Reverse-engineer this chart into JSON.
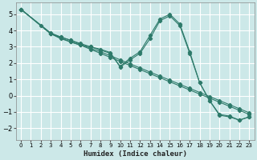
{
  "xlabel": "Humidex (Indice chaleur)",
  "ylabel": "",
  "bg_color": "#cce8e8",
  "grid_color": "#ffffff",
  "line_color": "#2d7a6a",
  "xlim": [
    -0.5,
    23.5
  ],
  "ylim": [
    -2.7,
    5.7
  ],
  "xticks": [
    0,
    1,
    2,
    3,
    4,
    5,
    6,
    7,
    8,
    9,
    10,
    11,
    12,
    13,
    14,
    15,
    16,
    17,
    18,
    19,
    20,
    21,
    22,
    23
  ],
  "yticks": [
    -2,
    -1,
    0,
    1,
    2,
    3,
    4,
    5
  ],
  "series": [
    {
      "x": [
        0,
        3,
        4,
        5,
        6,
        7,
        8,
        9,
        10,
        11,
        12,
        13,
        14,
        15,
        16,
        17,
        18,
        19,
        20,
        21,
        22,
        23
      ],
      "y": [
        5.3,
        3.8,
        3.55,
        3.3,
        3.1,
        2.85,
        2.6,
        2.35,
        2.1,
        1.85,
        1.6,
        1.35,
        1.1,
        0.85,
        0.6,
        0.35,
        0.1,
        -0.15,
        -0.4,
        -0.65,
        -0.9,
        -1.15
      ]
    },
    {
      "x": [
        0,
        3,
        4,
        5,
        6,
        7,
        8,
        9,
        10,
        11,
        12,
        13,
        14,
        15,
        16,
        17,
        18,
        19,
        20,
        21,
        22,
        23
      ],
      "y": [
        5.3,
        3.85,
        3.6,
        3.4,
        3.15,
        2.9,
        2.7,
        2.45,
        2.2,
        1.95,
        1.7,
        1.45,
        1.2,
        0.95,
        0.7,
        0.45,
        0.2,
        -0.05,
        -0.3,
        -0.55,
        -0.8,
        -1.05
      ]
    },
    {
      "x": [
        0,
        2,
        3,
        4,
        5,
        6,
        7,
        8,
        9,
        10,
        11,
        12,
        13,
        14,
        15,
        16,
        17,
        18,
        19,
        20,
        21,
        22,
        23
      ],
      "y": [
        5.3,
        4.3,
        3.8,
        3.5,
        3.3,
        3.1,
        3.0,
        2.8,
        2.6,
        1.8,
        2.3,
        2.7,
        3.7,
        4.7,
        5.0,
        4.4,
        2.7,
        0.8,
        -0.3,
        -1.2,
        -1.3,
        -1.5,
        -1.3
      ]
    },
    {
      "x": [
        0,
        3,
        4,
        5,
        6,
        7,
        8,
        9,
        10,
        11,
        12,
        13,
        14,
        15,
        16,
        17,
        18,
        19,
        20,
        21,
        22,
        23
      ],
      "y": [
        5.3,
        3.8,
        3.6,
        3.4,
        3.2,
        3.0,
        2.85,
        2.65,
        1.75,
        2.2,
        2.6,
        3.5,
        4.6,
        4.9,
        4.3,
        2.6,
        0.8,
        -0.3,
        -1.15,
        -1.25,
        -1.5,
        -1.3
      ]
    }
  ]
}
